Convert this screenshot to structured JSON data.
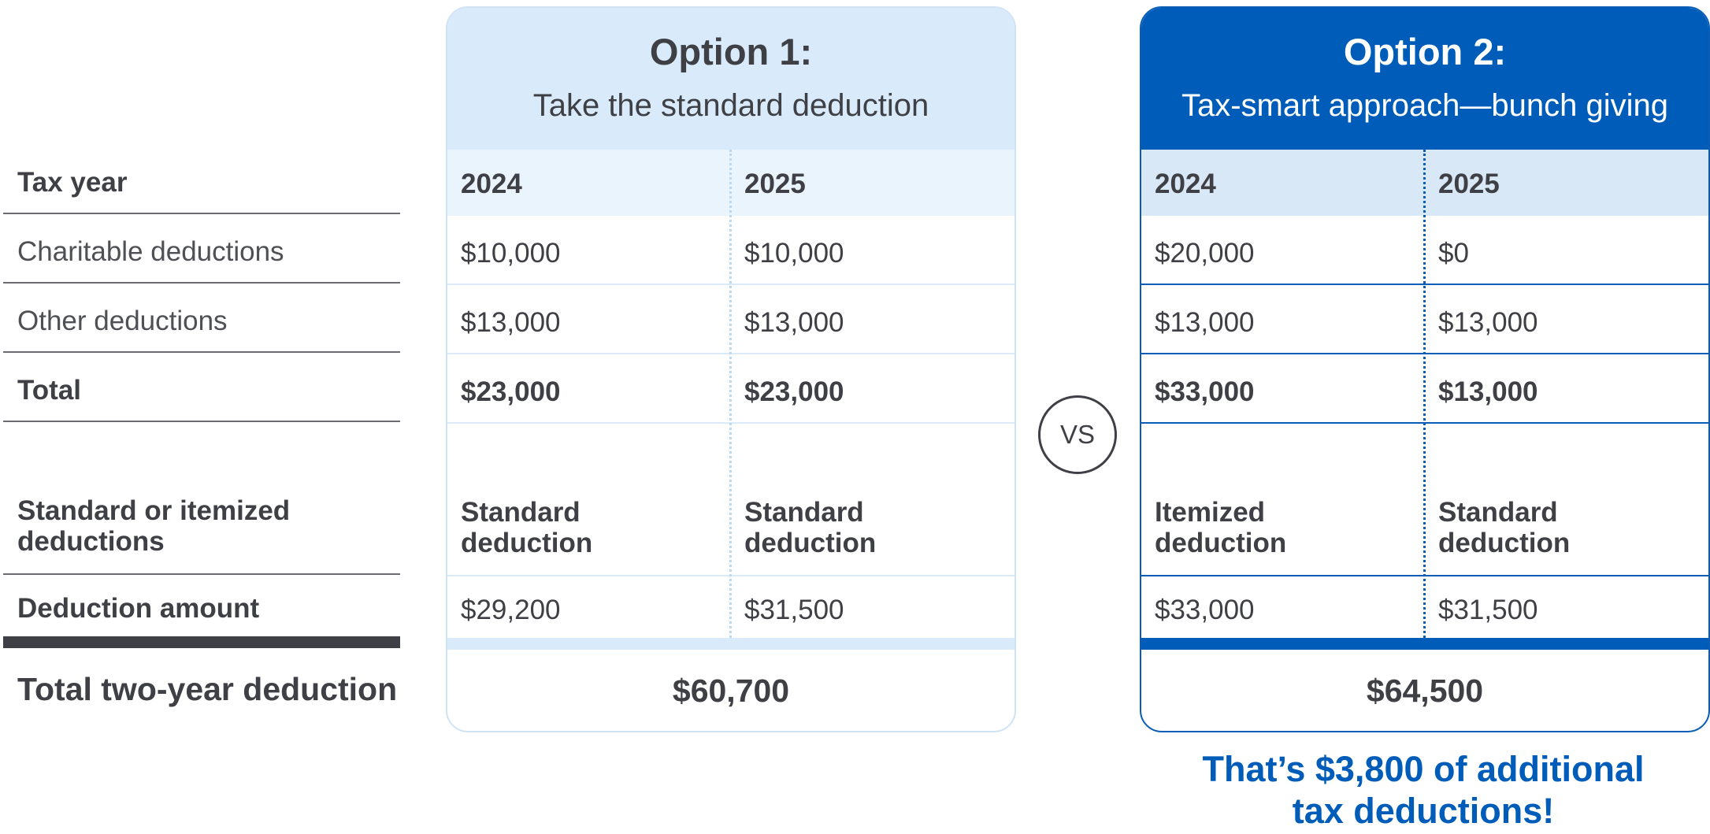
{
  "rows": {
    "tax_year": "Tax year",
    "charitable": "Charitable deductions",
    "other": "Other deductions",
    "total": "Total",
    "standard_or_itemized": "Standard or itemized deductions",
    "deduction_amount": "Deduction amount",
    "total_two_year": "Total two-year deduction"
  },
  "option1": {
    "title": "Option 1:",
    "subtitle": "Take the standard deduction",
    "years": [
      "2024",
      "2025"
    ],
    "charitable": [
      "$10,000",
      "$10,000"
    ],
    "other": [
      "$13,000",
      "$13,000"
    ],
    "total": [
      "$23,000",
      "$23,000"
    ],
    "deduction_type": [
      [
        "Standard",
        "deduction"
      ],
      [
        "Standard",
        "deduction"
      ]
    ],
    "deduction_amount": [
      "$29,200",
      "$31,500"
    ],
    "two_year_total": "$60,700"
  },
  "vs": "VS",
  "option2": {
    "title": "Option 2:",
    "subtitle": "Tax-smart approach—bunch giving",
    "years": [
      "2024",
      "2025"
    ],
    "charitable": [
      "$20,000",
      "$0"
    ],
    "other": [
      "$13,000",
      "$13,000"
    ],
    "total": [
      "$33,000",
      "$13,000"
    ],
    "deduction_type": [
      [
        "Itemized",
        "deduction"
      ],
      [
        "Standard",
        "deduction"
      ]
    ],
    "deduction_amount": [
      "$33,000",
      "$31,500"
    ],
    "two_year_total": "$64,500"
  },
  "callout": [
    "That’s $3,800 of additional",
    "tax deductions!"
  ],
  "colors": {
    "option1_header": "#d9ebfb",
    "option2_header": "#005cb9",
    "callout_text": "#005cb9",
    "body_text": "#3f4045"
  }
}
